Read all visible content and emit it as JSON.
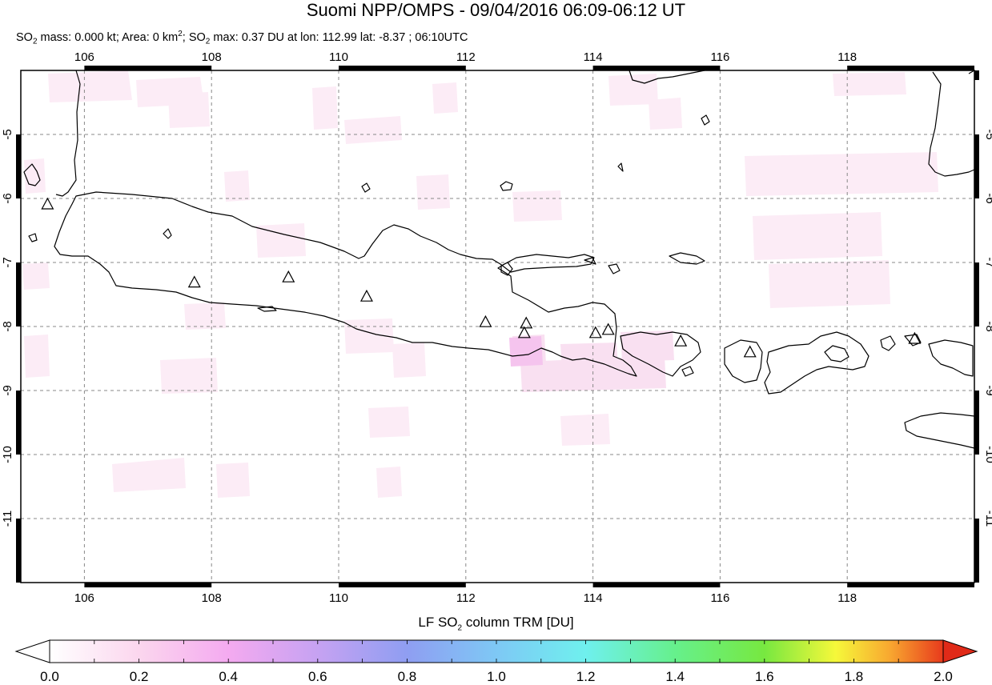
{
  "header": {
    "title": "Suomi NPP/OMPS - 09/04/2016 06:09-06:12 UT",
    "subtitle": {
      "p1": "SO",
      "p1_sub": "2",
      "p2": " mass: 0.000 kt; Area: 0 km",
      "p2_sup": "2",
      "p3": "; SO",
      "p3_sub": "2",
      "p4": " max: 0.37 DU at lon: 112.99 lat: -8.37 ; 06:10UTC"
    }
  },
  "map": {
    "lon_range": [
      105.0,
      120.0
    ],
    "lat_range": [
      -12.0,
      -4.0
    ],
    "lon_ticks": [
      "106",
      "108",
      "110",
      "112",
      "114",
      "116",
      "118"
    ],
    "lon_tick_values": [
      106,
      108,
      110,
      112,
      114,
      116,
      118
    ],
    "lat_ticks": [
      "-5",
      "-6",
      "-7",
      "-8",
      "-9",
      "-10",
      "-11"
    ],
    "lat_tick_values": [
      -5,
      -6,
      -7,
      -8,
      -9,
      -10,
      -11
    ],
    "grid": "dashed",
    "frame_color": "#000000",
    "volcanoes": [
      {
        "lon": 105.42,
        "lat": -6.1
      },
      {
        "lon": 107.73,
        "lat": -7.32
      },
      {
        "lon": 109.21,
        "lat": -7.24
      },
      {
        "lon": 110.44,
        "lat": -7.54
      },
      {
        "lon": 112.31,
        "lat": -7.94
      },
      {
        "lon": 112.95,
        "lat": -7.96
      },
      {
        "lon": 112.92,
        "lat": -8.11
      },
      {
        "lon": 114.04,
        "lat": -8.11
      },
      {
        "lon": 114.24,
        "lat": -8.06
      },
      {
        "lon": 115.38,
        "lat": -8.24
      },
      {
        "lon": 116.47,
        "lat": -8.41
      },
      {
        "lon": 119.06,
        "lat": -8.2
      }
    ]
  },
  "colorbar": {
    "title_pre": "LF SO",
    "title_sub": "2",
    "title_post": " column TRM [DU]",
    "labels": [
      "0.0",
      "0.2",
      "0.4",
      "0.6",
      "0.8",
      "1.0",
      "1.2",
      "1.4",
      "1.6",
      "1.8",
      "2.0"
    ],
    "range": [
      0.0,
      2.0
    ],
    "colors": [
      "#ffffff",
      "#fbd6ee",
      "#f4aaf0",
      "#c6a2f2",
      "#8f9ef2",
      "#7ec8f5",
      "#6ff0ee",
      "#66f08c",
      "#55e040",
      "#c8f040",
      "#f6f83a",
      "#f8b830",
      "#f06a28",
      "#e02a18"
    ]
  }
}
